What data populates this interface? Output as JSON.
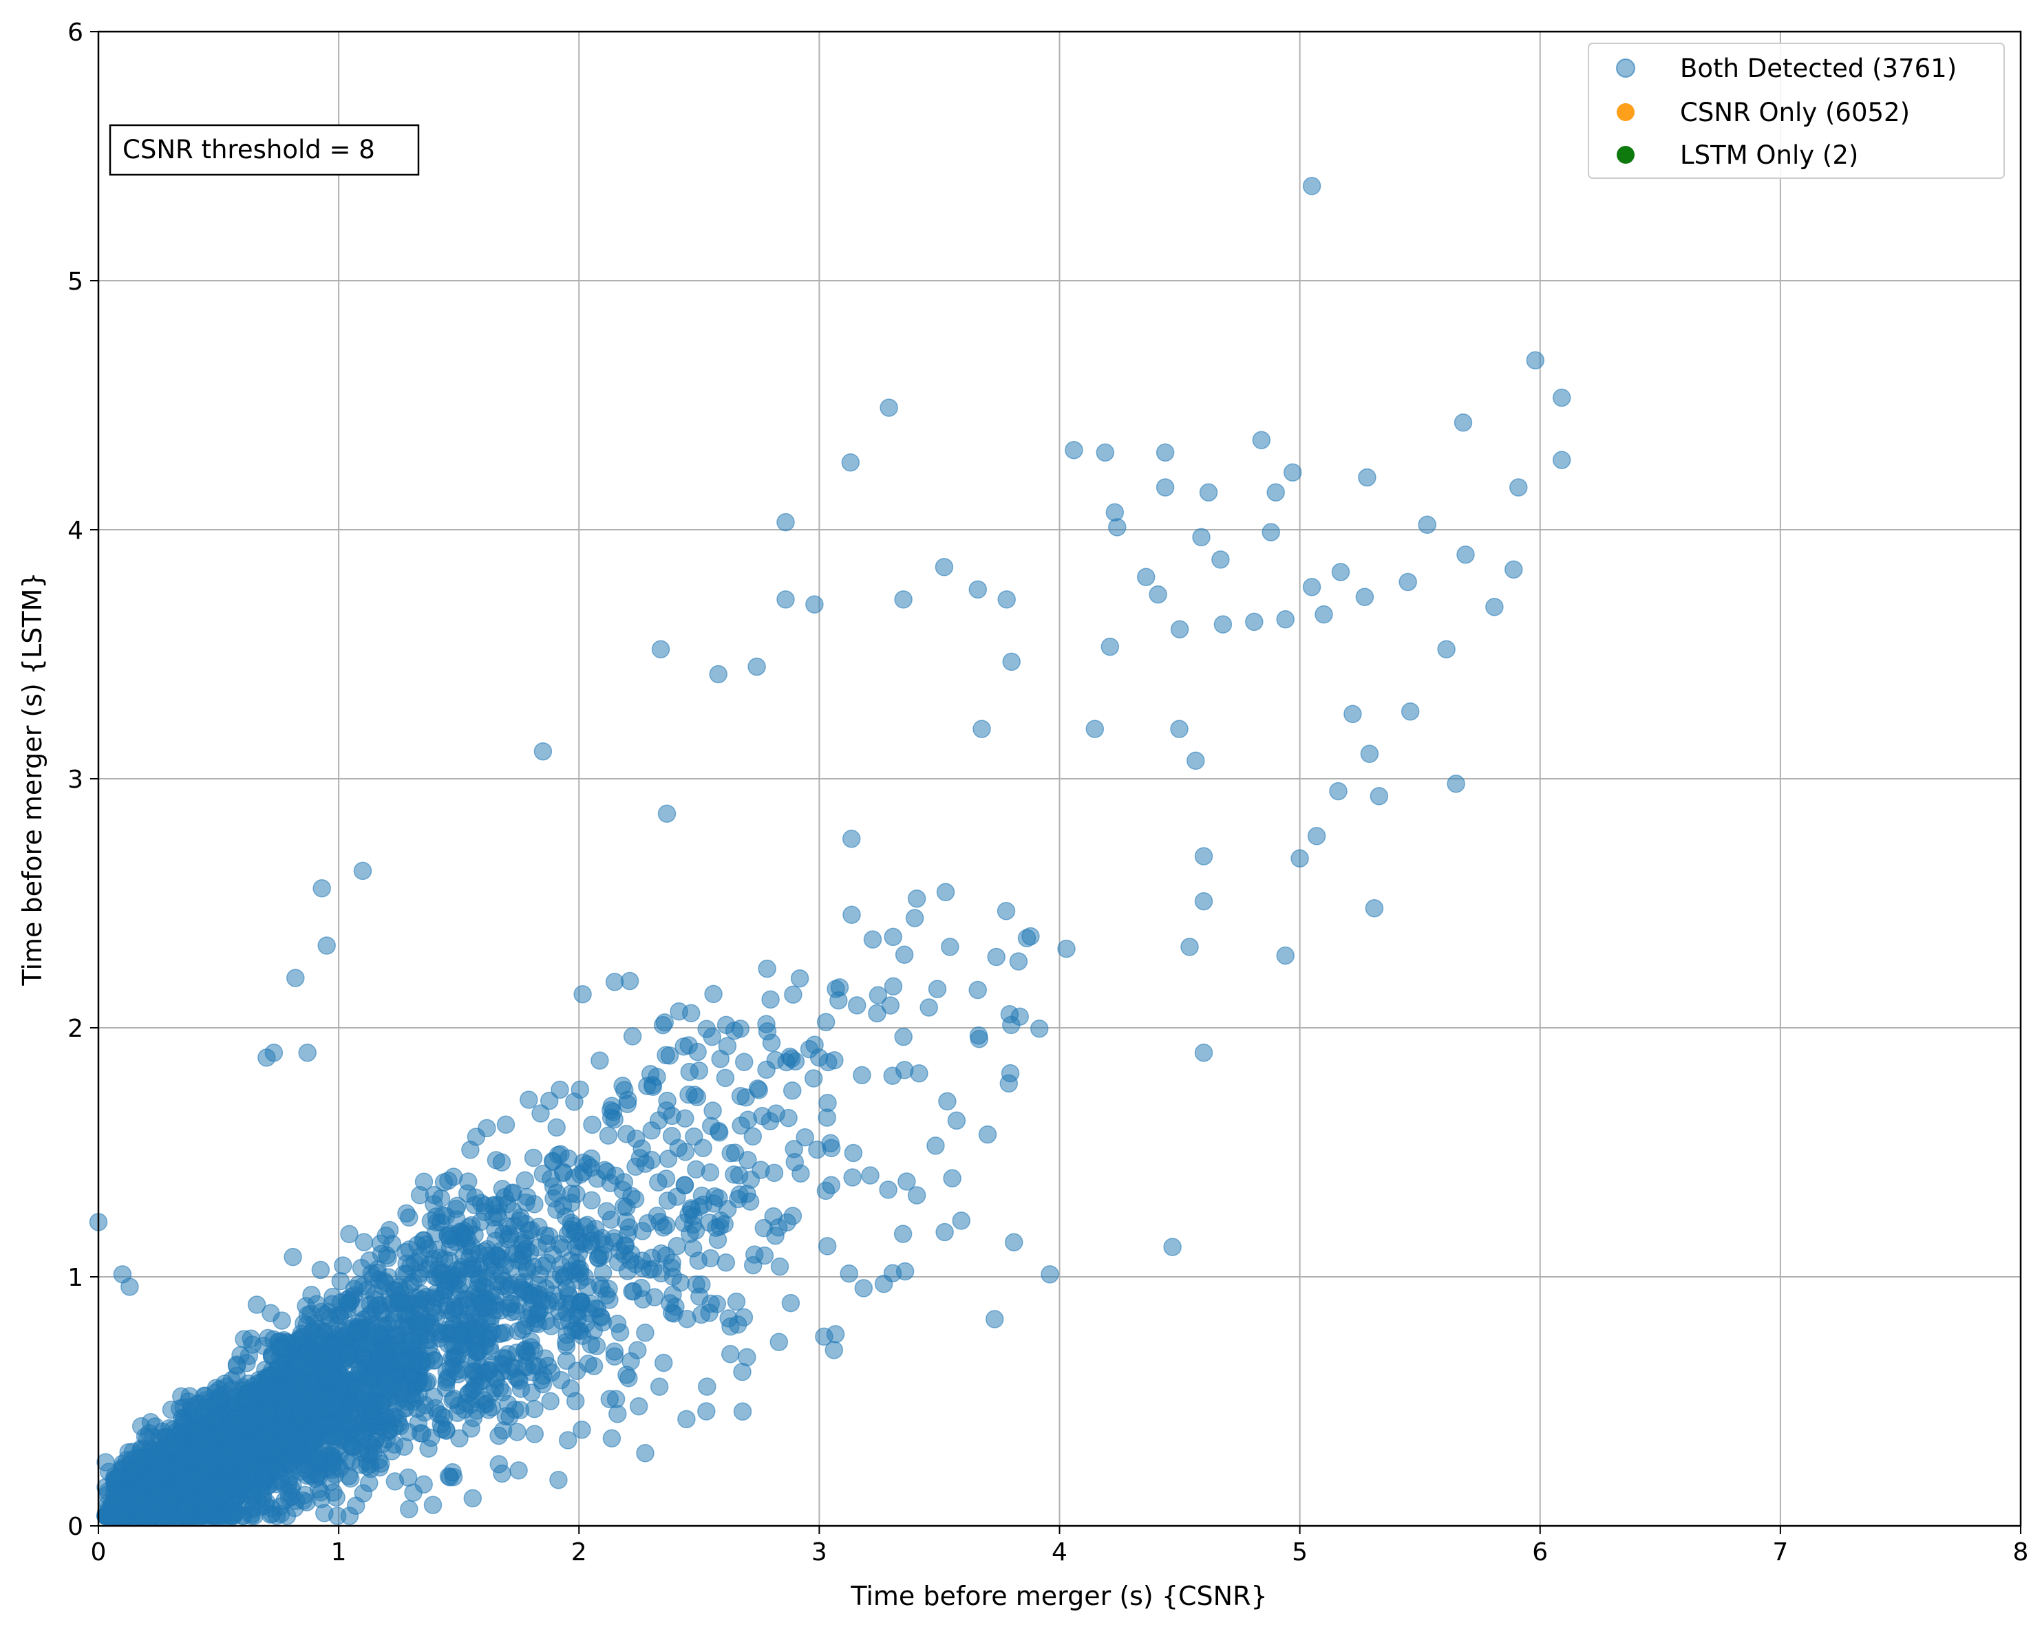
{
  "chart_data": {
    "type": "scatter",
    "title": "",
    "xlabel": "Time before merger (s) {CSNR}",
    "ylabel": "Time before merger (s) {LSTM}",
    "xlim": [
      0,
      8
    ],
    "ylim": [
      0,
      6
    ],
    "xticks": [
      0,
      1,
      2,
      3,
      4,
      5,
      6,
      7,
      8
    ],
    "yticks": [
      0,
      1,
      2,
      3,
      4,
      5,
      6
    ],
    "xtick_labels": [
      "0",
      "1",
      "2",
      "3",
      "4",
      "5",
      "6",
      "7",
      "8"
    ],
    "ytick_labels": [
      "0",
      "1",
      "2",
      "3",
      "4",
      "5",
      "6"
    ],
    "grid": true,
    "legend_position": "top-right",
    "annotation": "CSNR threshold = 8",
    "series": [
      {
        "name": "Both Detected (3761)",
        "color": "#1f77b4",
        "alpha": 0.5,
        "points_note": "dense cloud of 3761 points, roughly y ≈ 0.55x with spread; outliers listed",
        "count": 3761,
        "outliers": [
          [
            5.05,
            5.38
          ],
          [
            5.98,
            4.68
          ],
          [
            6.09,
            4.53
          ],
          [
            6.09,
            4.28
          ],
          [
            5.68,
            4.43
          ],
          [
            5.91,
            4.17
          ],
          [
            3.29,
            4.49
          ],
          [
            3.13,
            4.27
          ],
          [
            4.06,
            4.32
          ],
          [
            4.19,
            4.31
          ],
          [
            4.44,
            4.31
          ],
          [
            4.84,
            4.36
          ],
          [
            4.97,
            4.23
          ],
          [
            5.28,
            4.21
          ],
          [
            4.9,
            4.15
          ],
          [
            4.62,
            4.15
          ],
          [
            4.44,
            4.17
          ],
          [
            4.23,
            4.07
          ],
          [
            4.24,
            4.01
          ],
          [
            5.53,
            4.02
          ],
          [
            2.86,
            4.03
          ],
          [
            4.59,
            3.97
          ],
          [
            4.88,
            3.99
          ],
          [
            5.69,
            3.9
          ],
          [
            5.89,
            3.84
          ],
          [
            5.17,
            3.83
          ],
          [
            5.45,
            3.79
          ],
          [
            5.05,
            3.77
          ],
          [
            4.67,
            3.88
          ],
          [
            3.52,
            3.85
          ],
          [
            3.66,
            3.76
          ],
          [
            2.86,
            3.72
          ],
          [
            2.98,
            3.7
          ],
          [
            3.35,
            3.72
          ],
          [
            3.78,
            3.72
          ],
          [
            5.81,
            3.69
          ],
          [
            5.27,
            3.73
          ],
          [
            5.1,
            3.66
          ],
          [
            4.36,
            3.81
          ],
          [
            4.41,
            3.74
          ],
          [
            2.34,
            3.52
          ],
          [
            2.74,
            3.45
          ],
          [
            2.58,
            3.42
          ],
          [
            3.8,
            3.47
          ],
          [
            4.21,
            3.53
          ],
          [
            5.61,
            3.52
          ],
          [
            4.94,
            3.64
          ],
          [
            4.68,
            3.62
          ],
          [
            4.81,
            3.63
          ],
          [
            4.5,
            3.6
          ],
          [
            1.85,
            3.11
          ],
          [
            1.1,
            2.63
          ],
          [
            0.93,
            2.56
          ],
          [
            0.95,
            2.33
          ],
          [
            0.82,
            2.2
          ],
          [
            0.7,
            1.88
          ],
          [
            0.73,
            1.9
          ],
          [
            0.87,
            1.9
          ],
          [
            0.0,
            1.22
          ],
          [
            0.1,
            1.01
          ],
          [
            0.13,
            0.96
          ],
          [
            4.47,
            1.12
          ],
          [
            3.73,
            0.83
          ],
          [
            3.96,
            1.01
          ],
          [
            4.6,
            1.9
          ],
          [
            4.94,
            2.29
          ],
          [
            5.31,
            2.48
          ],
          [
            5.65,
            2.98
          ],
          [
            5.33,
            2.93
          ],
          [
            5.46,
            3.27
          ],
          [
            5.29,
            3.1
          ],
          [
            5.22,
            3.26
          ],
          [
            5.16,
            2.95
          ],
          [
            5.07,
            2.77
          ],
          [
            5.0,
            2.68
          ],
          [
            3.02,
            0.76
          ],
          [
            2.63,
            0.69
          ],
          [
            2.53,
            0.46
          ],
          [
            1.68,
            0.21
          ],
          [
            0.72,
            0.07
          ]
        ]
      },
      {
        "name": "CSNR Only (6052)",
        "color": "#ff9f1a",
        "count": 6052
      },
      {
        "name": "LSTM Only (2)",
        "color": "#0e7a0e",
        "count": 2
      }
    ]
  }
}
